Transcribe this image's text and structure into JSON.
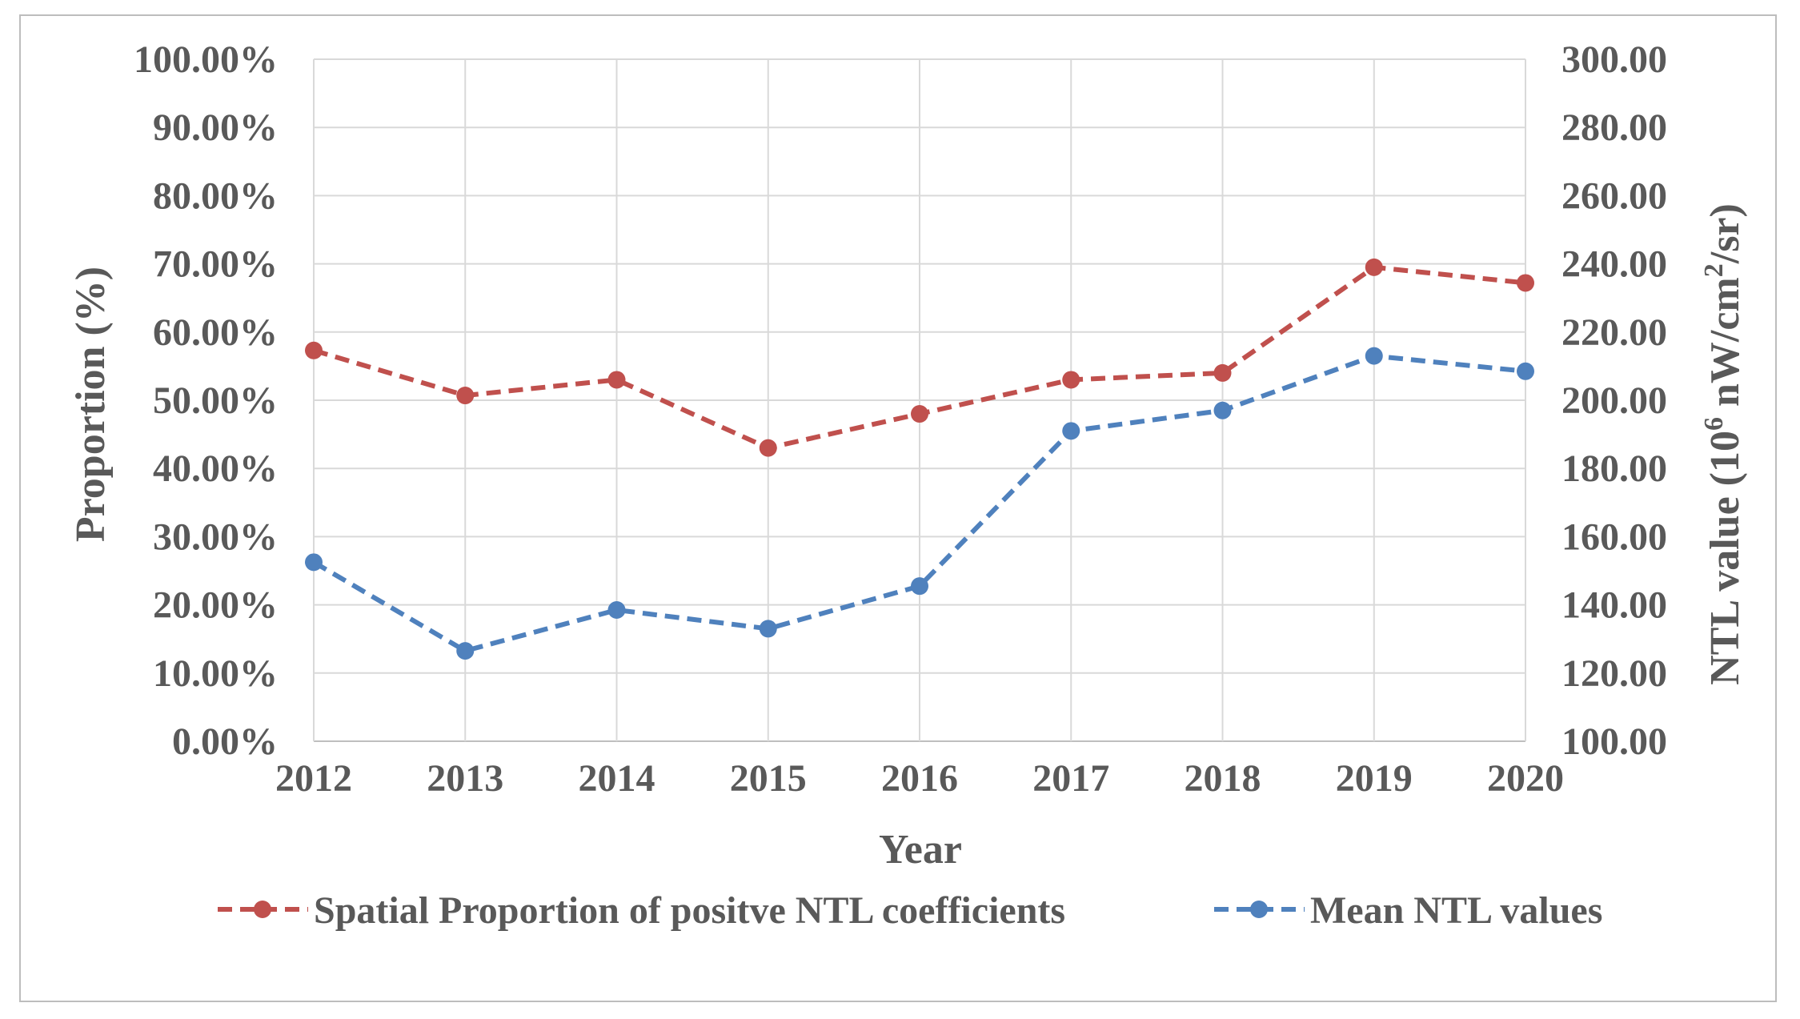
{
  "chart_data": {
    "type": "line",
    "title": "",
    "xlabel": "Year",
    "ylabel": "Proportion (%)",
    "y2label_parts": [
      "NTL value (10",
      "6",
      " nW/cm",
      "2",
      "/sr)"
    ],
    "categories": [
      "2012",
      "2013",
      "2014",
      "2015",
      "2016",
      "2017",
      "2018",
      "2019",
      "2020"
    ],
    "ylim": [
      0,
      100
    ],
    "y2lim": [
      100,
      300
    ],
    "yticks": [
      "0.00%",
      "10.00%",
      "20.00%",
      "30.00%",
      "40.00%",
      "50.00%",
      "60.00%",
      "70.00%",
      "80.00%",
      "90.00%",
      "100.00%"
    ],
    "y2ticks": [
      "100.00",
      "120.00",
      "140.00",
      "160.00",
      "180.00",
      "200.00",
      "220.00",
      "240.00",
      "260.00",
      "280.00",
      "300.00"
    ],
    "grid": true,
    "legend_position": "bottom",
    "series": [
      {
        "name": "Spatial Proportion of positve NTL coefficients",
        "axis": "left",
        "color": "#c0504d",
        "values": [
          57.3,
          50.7,
          53.0,
          43.0,
          48.0,
          53.0,
          54.0,
          69.5,
          67.2
        ]
      },
      {
        "name": "Mean NTL values",
        "axis": "right",
        "color": "#4f81bd",
        "values": [
          152.5,
          126.5,
          138.5,
          133.0,
          145.5,
          191.0,
          197.0,
          213.0,
          208.5
        ]
      }
    ]
  }
}
